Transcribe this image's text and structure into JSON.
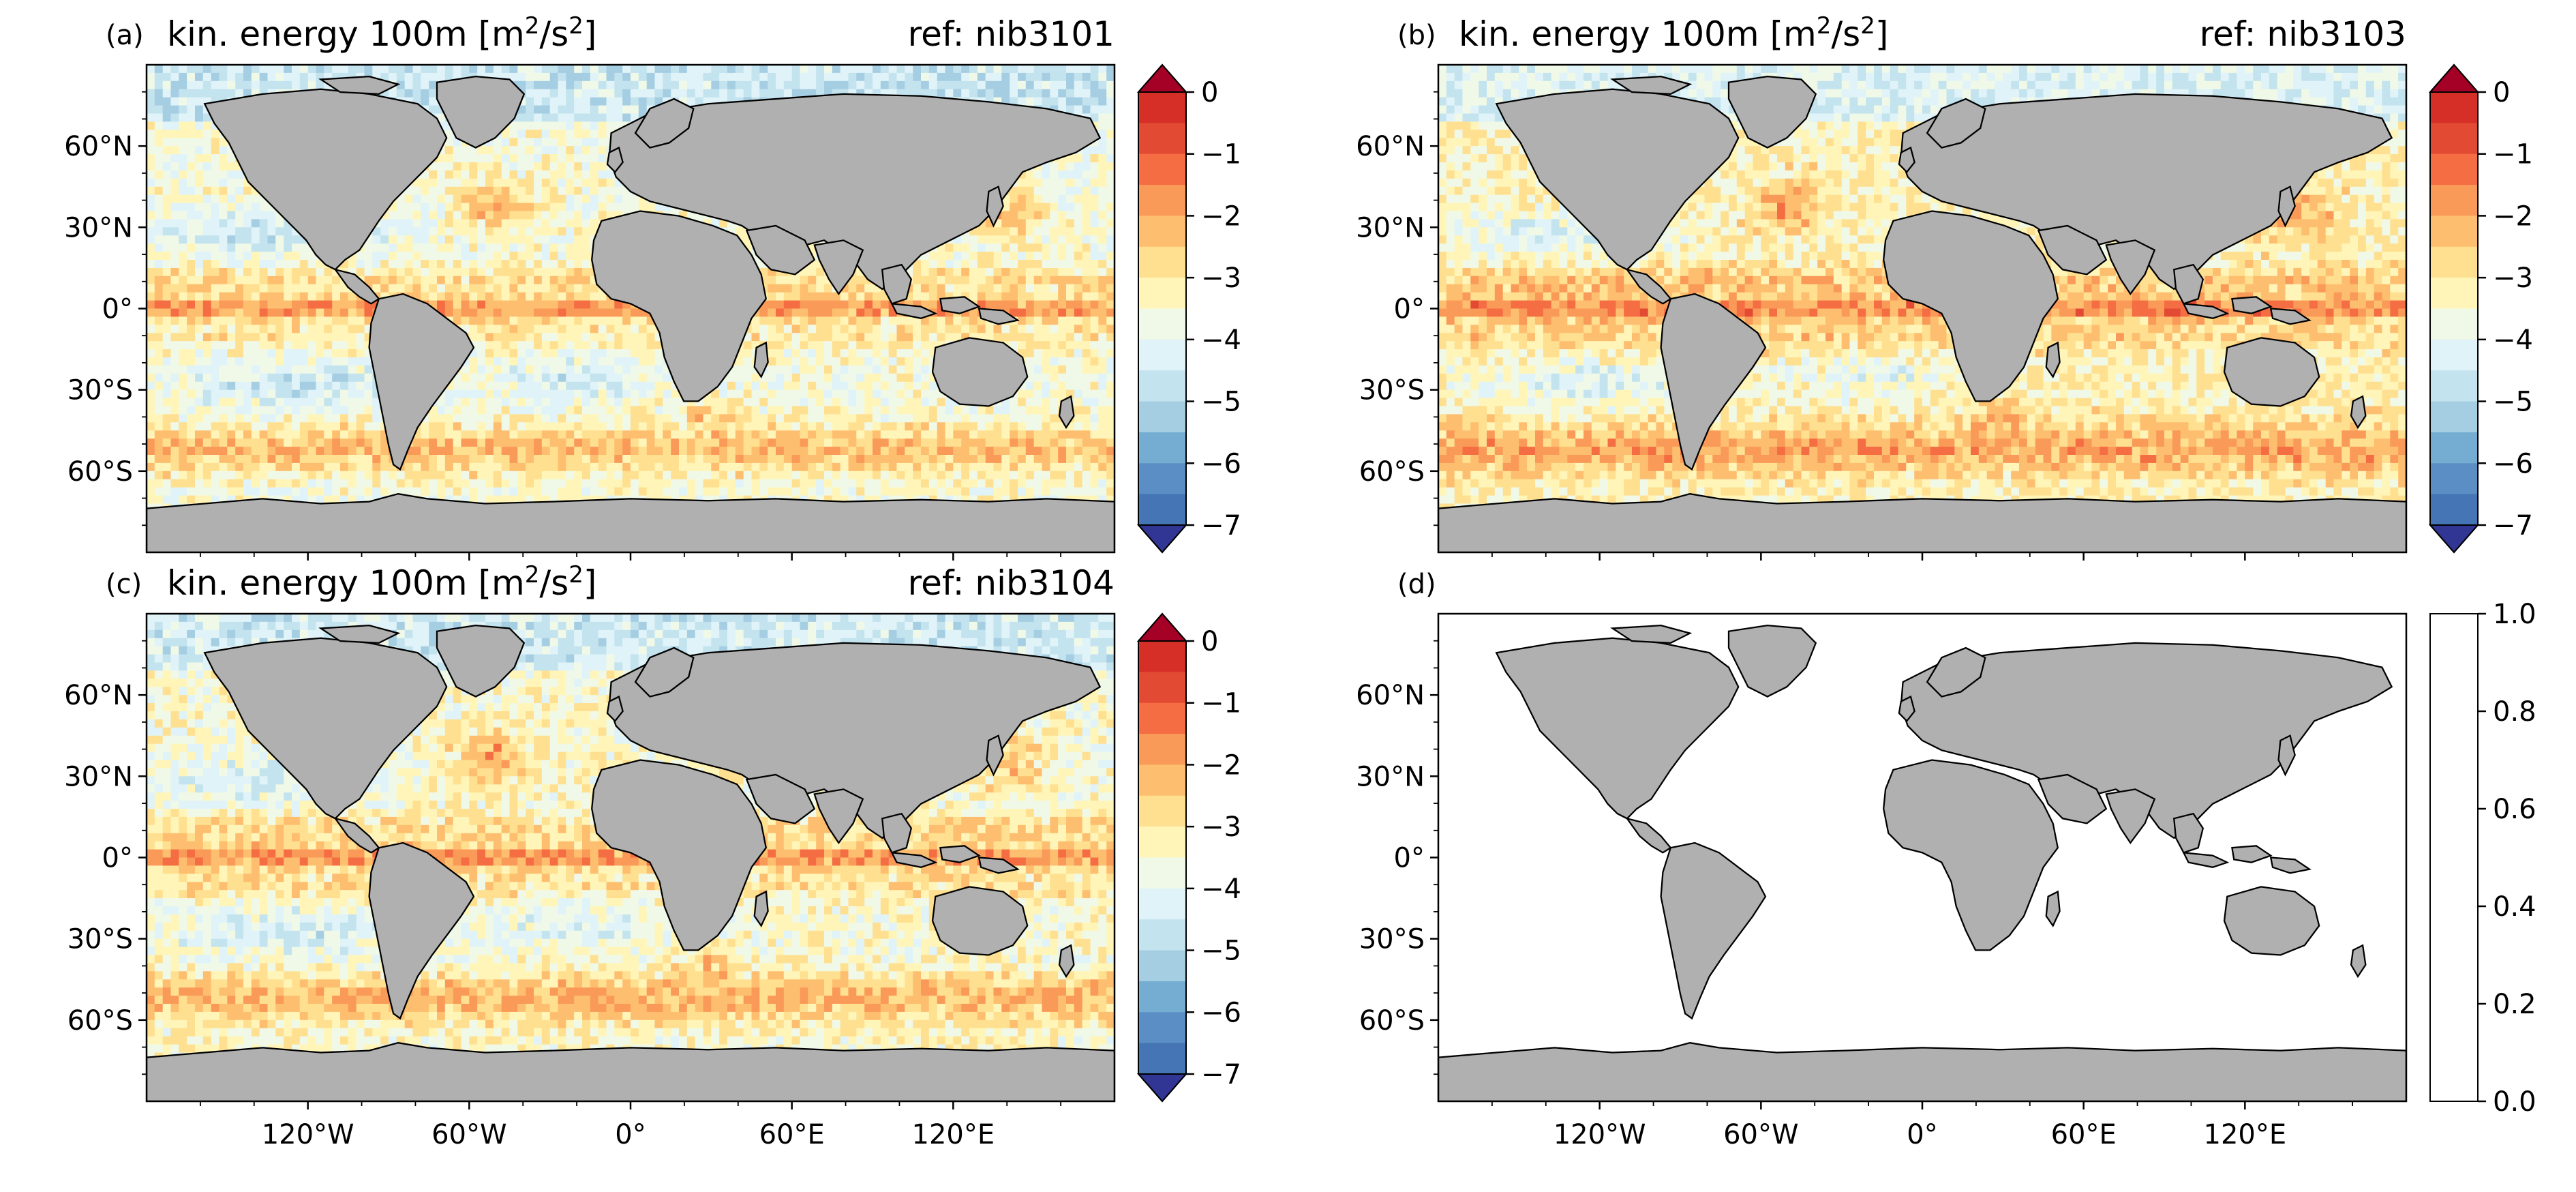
{
  "figure": {
    "panels": [
      {
        "id": "a",
        "label": "(a)",
        "title_main": "kin. energy 100m [m",
        "title_sup": "2",
        "title_mid": "/s",
        "title_sup2": "2",
        "title_end": "]",
        "ref": "ref: nib3101",
        "has_data": true,
        "variant": 0
      },
      {
        "id": "b",
        "label": "(b)",
        "title_main": "kin. energy 100m [m",
        "title_sup": "2",
        "title_mid": "/s",
        "title_sup2": "2",
        "title_end": "]",
        "ref": "ref: nib3103",
        "has_data": true,
        "variant": 1
      },
      {
        "id": "c",
        "label": "(c)",
        "title_main": "kin. energy 100m [m",
        "title_sup": "2",
        "title_mid": "/s",
        "title_sup2": "2",
        "title_end": "]",
        "ref": "ref: nib3104",
        "has_data": true,
        "variant": 2
      },
      {
        "id": "d",
        "label": "(d)",
        "title_main": "",
        "title_sup": "",
        "title_mid": "",
        "title_sup2": "",
        "title_end": "",
        "ref": "",
        "has_data": false,
        "variant": 3
      }
    ],
    "lat_ticks": [
      "60°N",
      "30°N",
      "0°",
      "30°S",
      "60°S"
    ],
    "lon_ticks": [
      "120°W",
      "60°W",
      "0°",
      "60°E",
      "120°E"
    ],
    "colorbar_data": {
      "ticks": [
        "0",
        "−1",
        "−2",
        "−3",
        "−4",
        "−5",
        "−6",
        "−7"
      ],
      "range": [
        -7,
        0
      ],
      "colors": [
        "#d62f27",
        "#e34a33",
        "#f46d43",
        "#fa9a58",
        "#fdbf6f",
        "#fee090",
        "#fff5b8",
        "#f0f9e8",
        "#e0f3f8",
        "#c3e3ee",
        "#a6cee3",
        "#74add1",
        "#5a8ec4",
        "#4575b4"
      ],
      "over_color": "#a50026",
      "under_color": "#313695"
    },
    "colorbar_empty": {
      "ticks": [
        "1.0",
        "0.8",
        "0.6",
        "0.4",
        "0.2",
        "0.0"
      ],
      "range": [
        0,
        1
      ]
    },
    "land_color": "#b0b0b0"
  }
}
